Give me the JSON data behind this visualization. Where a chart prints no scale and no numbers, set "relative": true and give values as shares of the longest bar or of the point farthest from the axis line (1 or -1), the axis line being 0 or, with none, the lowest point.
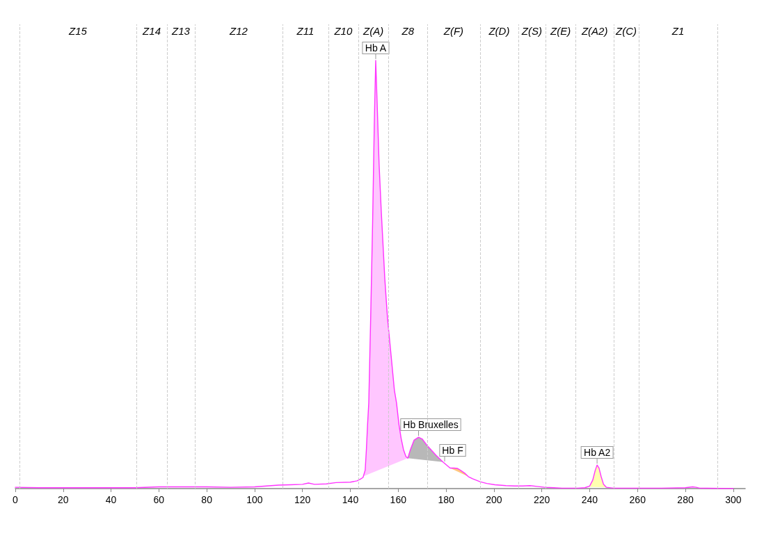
{
  "chart_data": {
    "type": "line",
    "relative": true,
    "marker": "none",
    "xlim": [
      0,
      305
    ],
    "xticks": [
      0,
      20,
      40,
      60,
      80,
      100,
      120,
      140,
      160,
      180,
      200,
      220,
      240,
      260,
      280,
      300
    ],
    "x": [
      0,
      10,
      20,
      30,
      40,
      50,
      60,
      70,
      80,
      90,
      100,
      105,
      110,
      115,
      120,
      122.5,
      125,
      130,
      134,
      140,
      142.8,
      144.2,
      145.3,
      146.2,
      146.7,
      147.2,
      147.7,
      148.5,
      149.3,
      150.0,
      150.6,
      151.2,
      152.0,
      152.9,
      154.4,
      155.5,
      156.7,
      158.4,
      159.3,
      160.3,
      161.2,
      162.2,
      163.2,
      164.0,
      165.1,
      166.6,
      168.5,
      170.0,
      171.9,
      173.8,
      175.8,
      178.7,
      181.7,
      183.3,
      184.8,
      186.0,
      188.0,
      189.3,
      191.1,
      194.2,
      197,
      200.4,
      205,
      208.7,
      212,
      215,
      218,
      221.2,
      225,
      228.5,
      235,
      238,
      240,
      241.3,
      242.3,
      243.1,
      243.9,
      244.8,
      245.8,
      247,
      250,
      260,
      270,
      280,
      283,
      284.5,
      286,
      300
    ],
    "series": [
      {
        "color": "#ff33ff",
        "values": [
          0.003,
          0.002,
          0.002,
          0.002,
          0.002,
          0.002,
          0.004,
          0.004,
          0.004,
          0.003,
          0.004,
          0.006,
          0.008,
          0.009,
          0.01,
          0.013,
          0.01,
          0.011,
          0.014,
          0.015,
          0.018,
          0.022,
          0.026,
          0.043,
          0.091,
          0.15,
          0.2,
          0.4,
          0.62,
          0.85,
          1.0,
          0.9,
          0.76,
          0.65,
          0.49,
          0.4,
          0.33,
          0.23,
          0.2,
          0.15,
          0.118,
          0.091,
          0.075,
          0.071,
          0.091,
          0.113,
          0.12,
          0.116,
          0.102,
          0.09,
          0.078,
          0.062,
          0.048,
          0.048,
          0.047,
          0.043,
          0.035,
          0.028,
          0.023,
          0.016,
          0.012,
          0.009,
          0.007,
          0.006,
          0.006,
          0.007,
          0.005,
          0.003,
          0.002,
          0.001,
          0.001,
          0.002,
          0.006,
          0.02,
          0.042,
          0.055,
          0.048,
          0.028,
          0.01,
          0.003,
          0.001,
          0.001,
          0.001,
          0.002,
          0.004,
          0.003,
          0.001,
          0.0
        ]
      },
      {
        "type": "area",
        "color": "#ffc6ff",
        "x": [
          145.5,
          146.2,
          146.7,
          147.2,
          147.7,
          148.5,
          149.3,
          150.0,
          150.6,
          151.2,
          152.0,
          152.9,
          154.4,
          155.5,
          156.7,
          158.4,
          159.3,
          160.3,
          161.2,
          162.2,
          163.2,
          164.0
        ],
        "values": [
          0.029,
          0.043,
          0.091,
          0.15,
          0.2,
          0.4,
          0.62,
          0.85,
          1.0,
          0.9,
          0.76,
          0.65,
          0.49,
          0.4,
          0.33,
          0.23,
          0.2,
          0.15,
          0.118,
          0.091,
          0.075,
          0.071
        ]
      },
      {
        "type": "area",
        "color": "#b8b8b8",
        "x": [
          164.0,
          165.1,
          166.6,
          168.5,
          170.0,
          171.9,
          173.8,
          175.8,
          178.7
        ],
        "values": [
          0.071,
          0.091,
          0.113,
          0.12,
          0.116,
          0.102,
          0.09,
          0.078,
          0.062
        ]
      },
      {
        "type": "area",
        "color": "#ffc680",
        "x": [
          181.7,
          183.3,
          184.8,
          186.0,
          188.0,
          189.3
        ],
        "values": [
          0.048,
          0.048,
          0.047,
          0.043,
          0.035,
          0.028
        ]
      },
      {
        "type": "area",
        "color": "#ffffb0",
        "x": [
          239,
          240,
          241.3,
          242.3,
          243.1,
          243.9,
          244.8,
          245.8,
          247
        ],
        "values": [
          0.004,
          0.006,
          0.02,
          0.042,
          0.055,
          0.048,
          0.028,
          0.01,
          0.003
        ]
      }
    ],
    "ref_lines": [
      {
        "axis": "x",
        "value": 1.7,
        "color": "#cccccc",
        "line_style": "dashed"
      },
      {
        "axis": "x",
        "value": 50.6,
        "color": "#cccccc",
        "line_style": "dashed"
      },
      {
        "axis": "x",
        "value": 63.4,
        "color": "#cccccc",
        "line_style": "dashed"
      },
      {
        "axis": "x",
        "value": 75.0,
        "color": "#cccccc",
        "line_style": "dashed"
      },
      {
        "axis": "x",
        "value": 111.6,
        "color": "#cccccc",
        "line_style": "dashed"
      },
      {
        "axis": "x",
        "value": 130.8,
        "color": "#cccccc",
        "line_style": "dashed"
      },
      {
        "axis": "x",
        "value": 143.3,
        "color": "#cccccc",
        "line_style": "dashed"
      },
      {
        "axis": "x",
        "value": 156.0,
        "color": "#cccccc",
        "line_style": "dashed"
      },
      {
        "axis": "x",
        "value": 172.1,
        "color": "#cccccc",
        "line_style": "dashed"
      },
      {
        "axis": "x",
        "value": 194.2,
        "color": "#cccccc",
        "line_style": "dashed"
      },
      {
        "axis": "x",
        "value": 210.2,
        "color": "#cccccc",
        "line_style": "dashed"
      },
      {
        "axis": "x",
        "value": 221.5,
        "color": "#cccccc",
        "line_style": "dashed"
      },
      {
        "axis": "x",
        "value": 234.2,
        "color": "#cccccc",
        "line_style": "dashed"
      },
      {
        "axis": "x",
        "value": 250.0,
        "color": "#cccccc",
        "line_style": "dashed"
      },
      {
        "axis": "x",
        "value": 260.6,
        "color": "#cccccc",
        "line_style": "dashed"
      },
      {
        "axis": "x",
        "value": 293.3,
        "color": "#cccccc",
        "line_style": "dashed"
      }
    ],
    "annotations": [
      "Z15",
      "Z14",
      "Z13",
      "Z12",
      "Z11",
      "Z10",
      "Z(A)",
      "Z8",
      "Z(F)",
      "Z(D)",
      "Z(S)",
      "Z(E)",
      "Z(A2)",
      "Z(C)",
      "Z1",
      {
        "text": "Hb A",
        "x": 150.6,
        "y": 1.0
      },
      {
        "text": "Hb Bruxelles",
        "x": 168.5,
        "y": 0.12
      },
      {
        "text": "Hb F",
        "x": 179.4,
        "y": 0.06
      },
      {
        "text": "Hb A2",
        "x": 243.1,
        "y": 0.055
      }
    ]
  }
}
